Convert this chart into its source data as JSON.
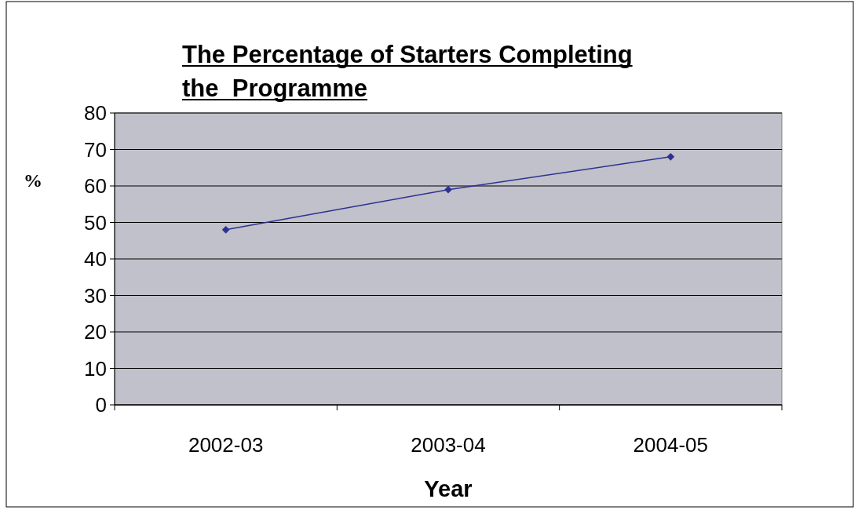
{
  "chart_data": {
    "type": "line",
    "title": "The Percentage of Starters Completing the  Programme",
    "xlabel": "Year",
    "ylabel": "%",
    "categories": [
      "2002-03",
      "2003-04",
      "2004-05"
    ],
    "series": [
      {
        "color": "#2e3192",
        "values": [
          48,
          59,
          68
        ]
      }
    ],
    "ylim": [
      0,
      80
    ],
    "yticks": [
      0,
      10,
      20,
      30,
      40,
      50,
      60,
      70,
      80
    ],
    "grid": "y",
    "marker": "diamond"
  }
}
